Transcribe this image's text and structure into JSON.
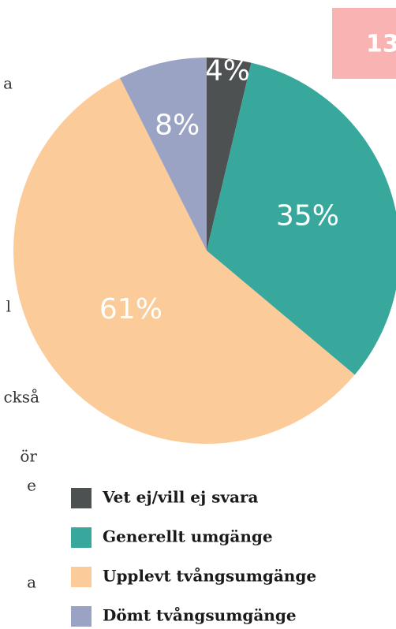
{
  "page_number": "13",
  "margin_text": [
    "a",
    "l",
    "ckså",
    "ör",
    "e",
    "a"
  ],
  "chart_data": {
    "type": "pie",
    "categories": [
      "Vet ej/vill ej svara",
      "Generellt umgänge",
      "Upplevt tvångsumgänge",
      "Dömt tvångsumgänge"
    ],
    "values": [
      4,
      35,
      61,
      8
    ],
    "value_labels": [
      "4%",
      "35%",
      "61%",
      "8%"
    ],
    "colors": [
      "#4d5152",
      "#38a89d",
      "#fbcb99",
      "#9ba3c4"
    ],
    "legend": "bottom"
  }
}
